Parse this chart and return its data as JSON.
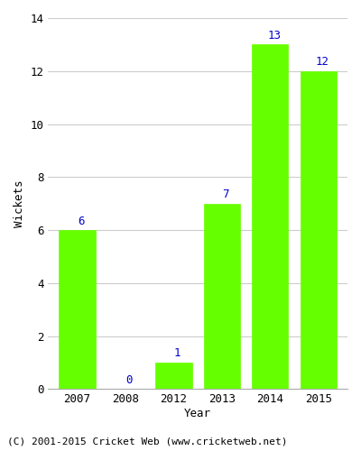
{
  "years": [
    "2007",
    "2008",
    "2012",
    "2013",
    "2014",
    "2015"
  ],
  "values": [
    6,
    0,
    1,
    7,
    13,
    12
  ],
  "bar_color": "#66ff00",
  "bar_edgecolor": "#66ff00",
  "label_color": "#0000cc",
  "xlabel": "Year",
  "ylabel": "Wickets",
  "ylim": [
    0,
    14
  ],
  "yticks": [
    0,
    2,
    4,
    6,
    8,
    10,
    12,
    14
  ],
  "footnote": "(C) 2001-2015 Cricket Web (www.cricketweb.net)",
  "footnote_color": "#000000",
  "grid_color": "#cccccc",
  "background_color": "#ffffff",
  "label_fontsize": 9,
  "axis_fontsize": 9,
  "footnote_fontsize": 8,
  "bar_width": 0.75
}
